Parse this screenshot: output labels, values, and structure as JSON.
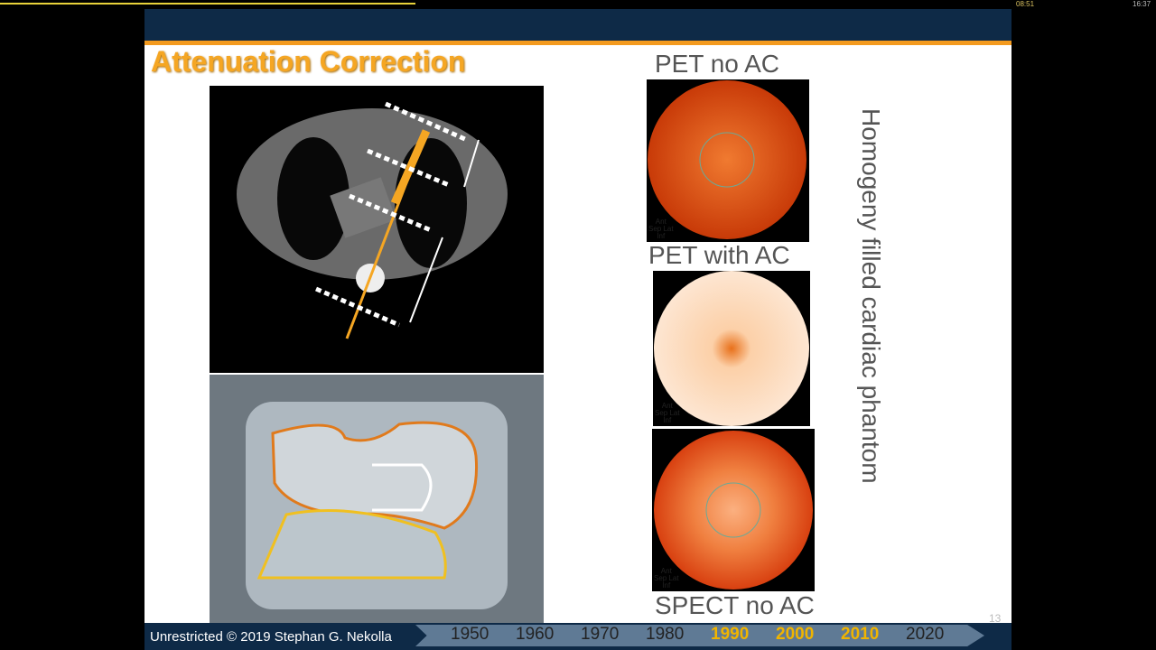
{
  "player": {
    "elapsed": "08:51",
    "duration": "16:37"
  },
  "slide": {
    "title": "Attenuation Correction",
    "maps": [
      {
        "label": "PET no AC"
      },
      {
        "label": "PET with AC"
      },
      {
        "label": "SPECT no AC"
      }
    ],
    "map_legend": [
      "Ant",
      "Sep Lat",
      "Inf"
    ],
    "side_text": "Homogeny filled cardiac phantom",
    "page_number": "13",
    "footer": "Unrestricted © 2019 Stephan G. Nekolla",
    "timeline": [
      {
        "year": "1950",
        "highlighted": false
      },
      {
        "year": "1960",
        "highlighted": false
      },
      {
        "year": "1970",
        "highlighted": false
      },
      {
        "year": "1980",
        "highlighted": false
      },
      {
        "year": "1990",
        "highlighted": true
      },
      {
        "year": "2000",
        "highlighted": true
      },
      {
        "year": "2010",
        "highlighted": true
      },
      {
        "year": "2020",
        "highlighted": false
      }
    ]
  }
}
